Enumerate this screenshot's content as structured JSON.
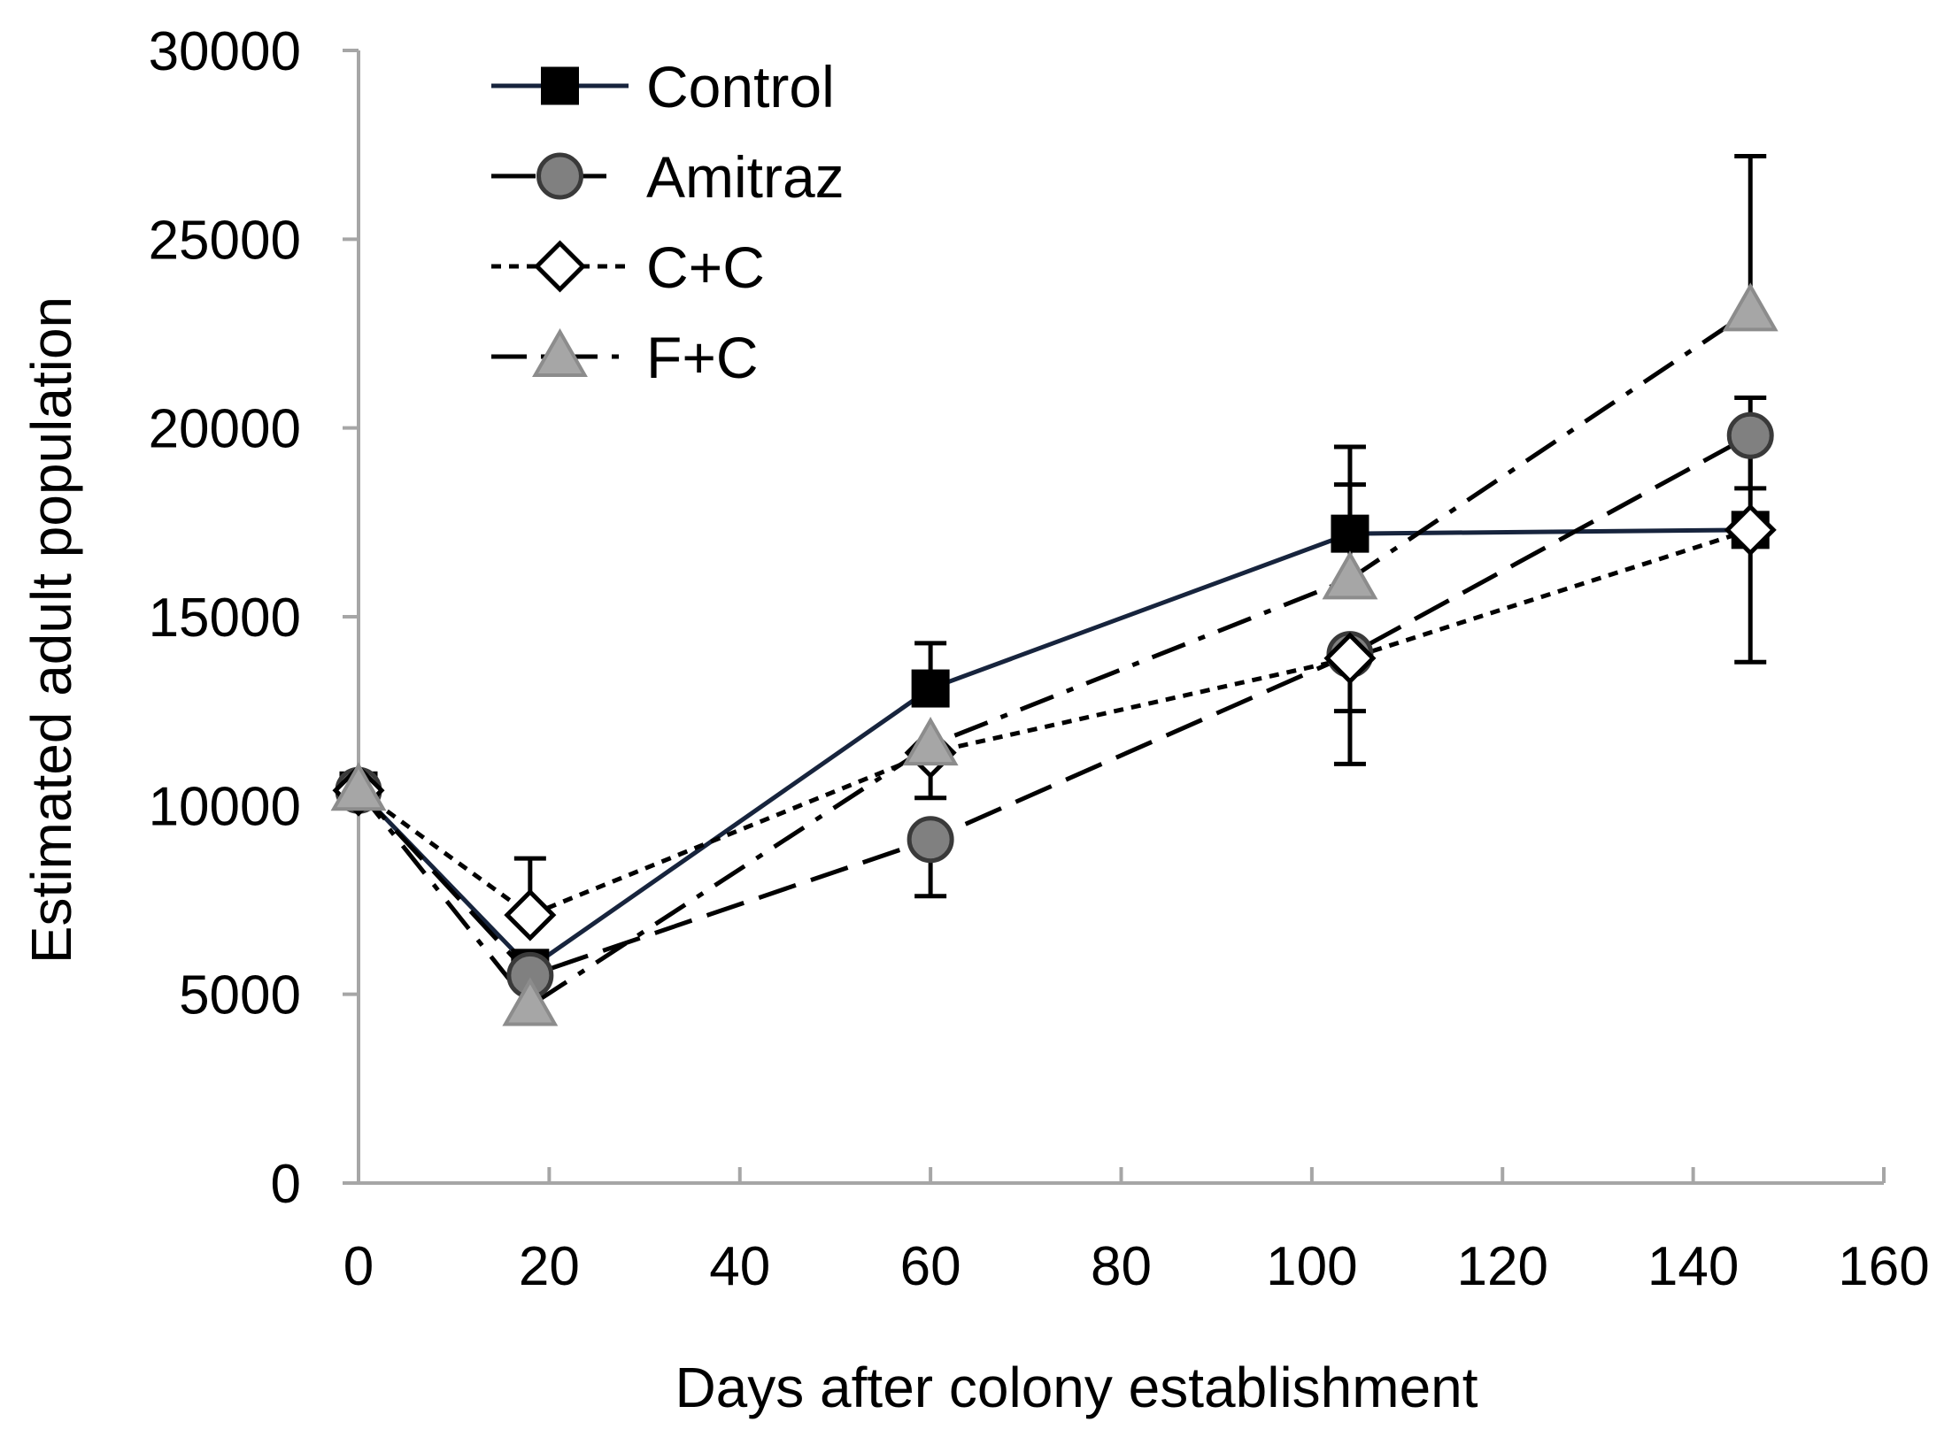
{
  "chart_data": {
    "type": "line",
    "title": "",
    "xlabel": "Days after colony establishment",
    "ylabel": "Estimated adult population",
    "xlim": [
      0,
      160
    ],
    "ylim": [
      0,
      30000
    ],
    "xticks": [
      0,
      20,
      40,
      60,
      80,
      100,
      120,
      140,
      160
    ],
    "yticks": [
      0,
      5000,
      10000,
      15000,
      20000,
      25000,
      30000
    ],
    "grid": false,
    "legend_position": "top-left",
    "series": [
      {
        "name": "Control",
        "key": "control",
        "marker": "square",
        "line_style": "solid",
        "color": "#17243d",
        "marker_fill": "#000000",
        "x": [
          0,
          18,
          60,
          104,
          146
        ],
        "y": [
          10400,
          5700,
          13100,
          17200,
          17300
        ],
        "err": [
          0,
          400,
          1200,
          2300,
          3500
        ]
      },
      {
        "name": "Amitraz",
        "key": "amitraz",
        "marker": "circle",
        "line_style": "long-dash",
        "color": "#000000",
        "marker_fill": "#808080",
        "x": [
          0,
          18,
          60,
          104,
          146
        ],
        "y": [
          10400,
          5500,
          9100,
          14000,
          19800
        ],
        "err": [
          0,
          400,
          1500,
          1500,
          1400
        ]
      },
      {
        "name": "C+C",
        "key": "cc",
        "marker": "diamond",
        "line_style": "dotted",
        "color": "#000000",
        "marker_fill": "#ffffff",
        "x": [
          0,
          18,
          60,
          104,
          146
        ],
        "y": [
          10400,
          7100,
          11400,
          13900,
          17300
        ],
        "err": [
          0,
          1500,
          1200,
          2800,
          3500
        ]
      },
      {
        "name": "F+C",
        "key": "fc",
        "marker": "triangle",
        "line_style": "dash-dot",
        "color": "#000000",
        "marker_fill": "#a6a6a6",
        "x": [
          0,
          18,
          60,
          104,
          146
        ],
        "y": [
          10400,
          4700,
          11600,
          16000,
          23100
        ],
        "err": [
          0,
          0,
          0,
          2500,
          4100
        ]
      }
    ]
  }
}
